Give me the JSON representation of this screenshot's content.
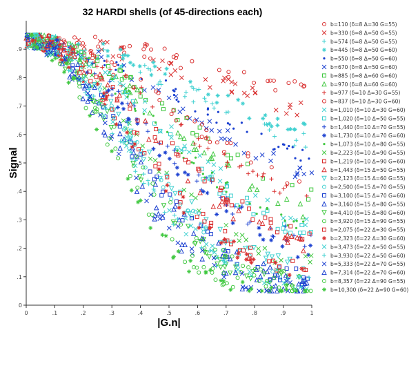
{
  "chart_data": {
    "type": "scatter",
    "title": "32 HARDI shells (of 45-directions each)",
    "xlabel": "|G.n|",
    "ylabel": "Signal",
    "xlim": [
      0,
      1
    ],
    "ylim": [
      0,
      1
    ],
    "x_ticks": [
      "0",
      ".1",
      ".2",
      ".3",
      ".4",
      ".5",
      ".6",
      ".7",
      ".8",
      ".9",
      "1"
    ],
    "y_ticks": [
      "0",
      ".1",
      ".2",
      ".3",
      ".4",
      ".5",
      ".6",
      ".7",
      ".8",
      ".9"
    ],
    "grid": false,
    "legend_position": "right",
    "series": [
      {
        "name": "b=110 (δ=8 Δ=30 G=55)",
        "color": "#d93030",
        "marker": "o",
        "scale": 0.35,
        "floor": 0.6
      },
      {
        "name": "b=330 (δ=8 Δ=50 G=55)",
        "color": "#d93030",
        "marker": "x",
        "scale": 0.5,
        "floor": 0.55
      },
      {
        "name": "b=574 (δ=8 Δ=50 G=55)",
        "color": "#3fd0d0",
        "marker": "+",
        "scale": 0.65,
        "floor": 0.45
      },
      {
        "name": "b=445 (δ=8 Δ=50 G=60)",
        "color": "#3fd0d0",
        "marker": "*",
        "scale": 0.6,
        "floor": 0.48
      },
      {
        "name": "b=550 (δ=8 Δ=50 G=60)",
        "color": "#1a3fd0",
        "marker": ".",
        "scale": 0.7,
        "floor": 0.4
      },
      {
        "name": "b=670 (δ=8 Δ=50 G=60)",
        "color": "#1a3fd0",
        "marker": "x",
        "scale": 0.8,
        "floor": 0.35
      },
      {
        "name": "b=885 (δ=8 Δ=60 G=60)",
        "color": "#40c840",
        "marker": "s",
        "scale": 0.9,
        "floor": 0.3
      },
      {
        "name": "b=970 (δ=8 Δ=60 G=60)",
        "color": "#40c840",
        "marker": "^",
        "scale": 1.0,
        "floor": 0.25
      },
      {
        "name": "b=977 (δ=10 Δ=30 G=55)",
        "color": "#d93030",
        "marker": "+",
        "scale": 0.95,
        "floor": 0.28
      },
      {
        "name": "b=837 (δ=10 Δ=30 G=60)",
        "color": "#d93030",
        "marker": "o",
        "scale": 0.85,
        "floor": 0.3
      },
      {
        "name": "b=1,010 (δ=10 Δ=30 G=60)",
        "color": "#3fd0d0",
        "marker": "x",
        "scale": 1.1,
        "floor": 0.22
      },
      {
        "name": "b=1,020 (δ=10 Δ=50 G=55)",
        "color": "#3fd0d0",
        "marker": "s",
        "scale": 1.2,
        "floor": 0.2
      },
      {
        "name": "b=1,440 (δ=10 Δ=70 G=55)",
        "color": "#1a3fd0",
        "marker": "+",
        "scale": 1.3,
        "floor": 0.18
      },
      {
        "name": "b=1,730 (δ=10 Δ=70 G=60)",
        "color": "#1a3fd0",
        "marker": "*",
        "scale": 1.45,
        "floor": 0.15
      },
      {
        "name": "b=1,073 (δ=10 Δ=80 G=55)",
        "color": "#40c840",
        "marker": ".",
        "scale": 1.15,
        "floor": 0.2
      },
      {
        "name": "b=2,223 (δ=10 Δ=90 G=55)",
        "color": "#40c840",
        "marker": "x",
        "scale": 1.6,
        "floor": 0.12
      },
      {
        "name": "b=1,219 (δ=10 Δ=90 G=60)",
        "color": "#d93030",
        "marker": "s",
        "scale": 1.25,
        "floor": 0.18
      },
      {
        "name": "b=1,443 (δ=15 Δ=50 G=55)",
        "color": "#d93030",
        "marker": "^",
        "scale": 1.35,
        "floor": 0.16
      },
      {
        "name": "b=2,123 (δ=15 Δ=60 G=55)",
        "color": "#3fd0d0",
        "marker": "v",
        "scale": 1.7,
        "floor": 0.1
      },
      {
        "name": "b=2,500 (δ=15 Δ=70 G=55)",
        "color": "#3fd0d0",
        "marker": "o",
        "scale": 1.8,
        "floor": 0.09
      },
      {
        "name": "b=3,100 (δ=15 Δ=70 G=60)",
        "color": "#1a3fd0",
        "marker": "s",
        "scale": 1.95,
        "floor": 0.08
      },
      {
        "name": "b=3,160 (δ=15 Δ=80 G=55)",
        "color": "#1a3fd0",
        "marker": "^",
        "scale": 2.0,
        "floor": 0.08
      },
      {
        "name": "b=4,410 (δ=15 Δ=80 G=60)",
        "color": "#40c840",
        "marker": "v",
        "scale": 2.2,
        "floor": 0.07
      },
      {
        "name": "b=3,920 (δ=15 Δ=90 G=55)",
        "color": "#40c840",
        "marker": "o",
        "scale": 2.1,
        "floor": 0.07
      },
      {
        "name": "b=2,075 (δ=22 Δ=30 G=55)",
        "color": "#d93030",
        "marker": "s",
        "scale": 1.65,
        "floor": 0.1
      },
      {
        "name": "b=2,323 (δ=22 Δ=30 G=60)",
        "color": "#d93030",
        "marker": "*",
        "scale": 1.75,
        "floor": 0.09
      },
      {
        "name": "b=3,473 (δ=22 Δ=50 G=55)",
        "color": "#3fd0d0",
        "marker": "x",
        "scale": 2.05,
        "floor": 0.07
      },
      {
        "name": "b=3,930 (δ=22 Δ=50 G=60)",
        "color": "#3fd0d0",
        "marker": "+",
        "scale": 2.15,
        "floor": 0.06
      },
      {
        "name": "b=5,333 (δ=22 Δ=70 G=55)",
        "color": "#1a3fd0",
        "marker": "x",
        "scale": 2.4,
        "floor": 0.05
      },
      {
        "name": "b=7,314 (δ=22 Δ=70 G=60)",
        "color": "#1a3fd0",
        "marker": "^",
        "scale": 2.6,
        "floor": 0.05
      },
      {
        "name": "b=8,357 (δ=22 Δ=90 G=55)",
        "color": "#40c840",
        "marker": "o",
        "scale": 2.8,
        "floor": 0.05
      },
      {
        "name": "b=10,300 (δ=22 Δ=90 G=60)",
        "color": "#40c840",
        "marker": "*",
        "scale": 3.0,
        "floor": 0.04
      }
    ]
  }
}
